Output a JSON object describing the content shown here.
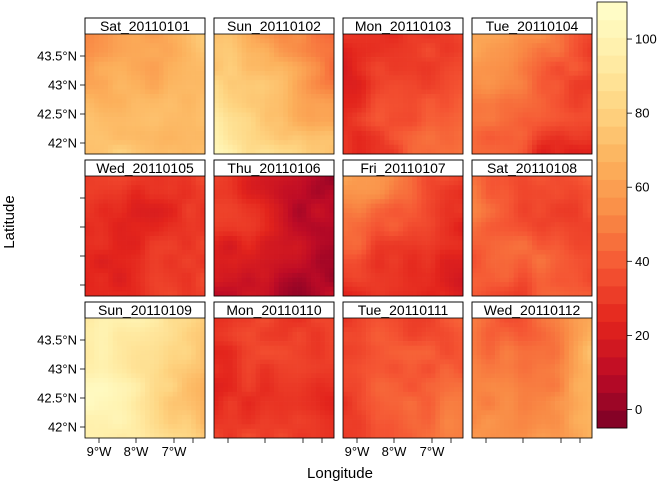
{
  "chart_data": {
    "type": "heatmap",
    "title": "",
    "xlabel": "Longitude",
    "ylabel": "Latitude",
    "panels": [
      {
        "title": "Sat_20110101",
        "pattern": "sat1"
      },
      {
        "title": "Sun_20110102",
        "pattern": "sun2"
      },
      {
        "title": "Mon_20110103",
        "pattern": "mon3"
      },
      {
        "title": "Tue_20110104",
        "pattern": "tue4"
      },
      {
        "title": "Wed_20110105",
        "pattern": "wed5"
      },
      {
        "title": "Thu_20110106",
        "pattern": "thu6"
      },
      {
        "title": "Fri_20110107",
        "pattern": "fri7"
      },
      {
        "title": "Sat_20110108",
        "pattern": "sat8"
      },
      {
        "title": "Sun_20110109",
        "pattern": "sun9"
      },
      {
        "title": "Mon_20110110",
        "pattern": "mon10"
      },
      {
        "title": "Tue_20110111",
        "pattern": "tue11"
      },
      {
        "title": "Wed_20110112",
        "pattern": "wed12"
      }
    ],
    "x_ticks": [
      "9°W",
      "8°W",
      "7°W"
    ],
    "y_ticks": [
      "43.5°N",
      "43°N",
      "42.5°N",
      "42°N"
    ],
    "colorbar": {
      "min": -5,
      "max": 110,
      "ticks": [
        0,
        20,
        40,
        60,
        80,
        100
      ],
      "stops": [
        "#7a0026",
        "#bd0b26",
        "#e3241c",
        "#f55533",
        "#f98a45",
        "#fcb15c",
        "#fed582",
        "#ffeea8",
        "#ffffcc"
      ]
    }
  }
}
